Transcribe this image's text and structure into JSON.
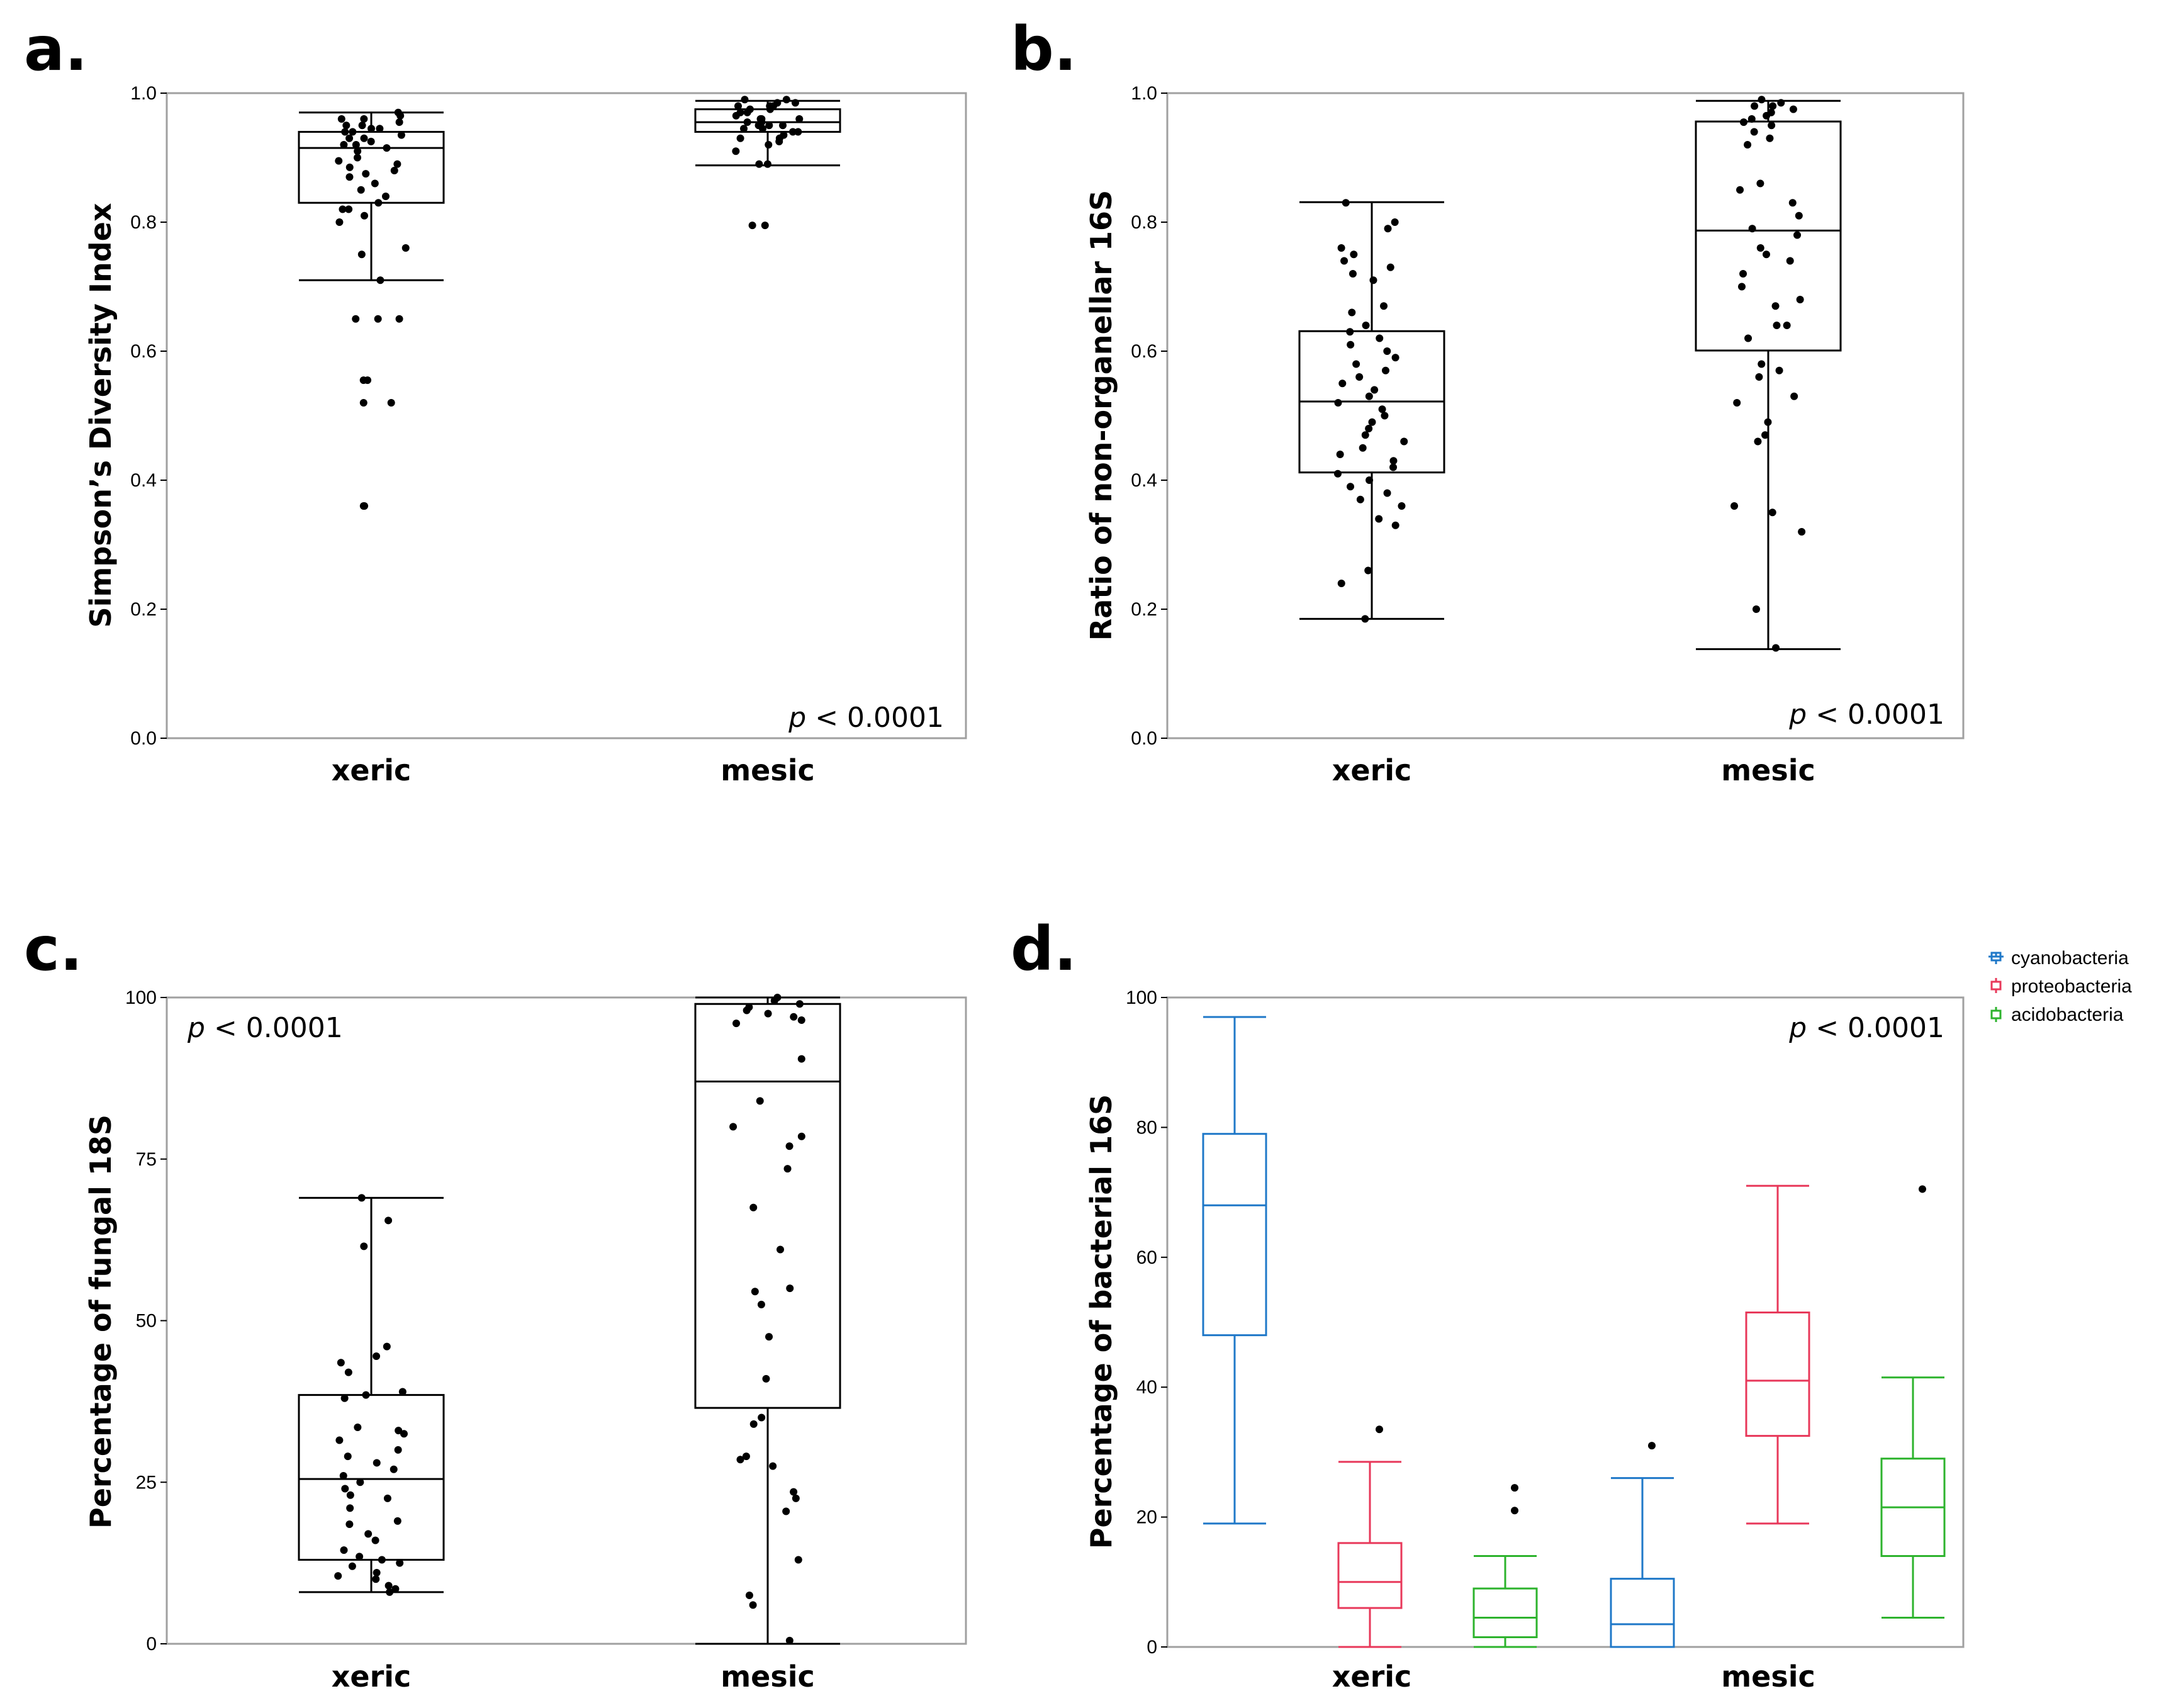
{
  "panels": {
    "a": {
      "letter": "a.",
      "pvalue_prefix": "p",
      "pvalue_rest": "< 0.0001"
    },
    "b": {
      "letter": "b.",
      "pvalue_prefix": "p",
      "pvalue_rest": "< 0.0001"
    },
    "c": {
      "letter": "c.",
      "pvalue_prefix": "p",
      "pvalue_rest": "< 0.0001"
    },
    "d": {
      "letter": "d.",
      "pvalue_prefix": "p",
      "pvalue_rest": "< 0.0001"
    }
  },
  "colors": {
    "cyanobacteria": "#1f78c8",
    "proteobacteria": "#e8385a",
    "acidobacteria": "#2db32d",
    "box": "#000000",
    "frame": "#a0a0a0"
  },
  "chart_data": [
    {
      "id": "a",
      "type": "box",
      "ylabel": "Simpson’s Diversity Index",
      "ylim": [
        0,
        1.0
      ],
      "yticks": [
        0.0,
        0.2,
        0.4,
        0.6,
        0.8,
        1.0
      ],
      "ytick_labels": [
        "0.0",
        "0.2",
        "0.4",
        "0.6",
        "0.8",
        "1.0"
      ],
      "categories": [
        "xeric",
        "mesic"
      ],
      "boxes": [
        {
          "category": "xeric",
          "whisker_low": 0.71,
          "q1": 0.83,
          "median": 0.915,
          "q3": 0.94,
          "whisker_high": 0.97,
          "points": [
            0.97,
            0.965,
            0.96,
            0.96,
            0.955,
            0.95,
            0.95,
            0.945,
            0.945,
            0.94,
            0.94,
            0.935,
            0.93,
            0.93,
            0.925,
            0.92,
            0.92,
            0.915,
            0.91,
            0.9,
            0.895,
            0.89,
            0.885,
            0.88,
            0.875,
            0.87,
            0.86,
            0.85,
            0.84,
            0.83,
            0.82,
            0.82,
            0.81,
            0.8,
            0.76,
            0.75,
            0.71,
            0.65,
            0.65,
            0.65,
            0.555,
            0.555,
            0.52,
            0.52,
            0.36,
            0.36
          ]
        },
        {
          "category": "mesic",
          "whisker_low": 0.888,
          "q1": 0.94,
          "median": 0.955,
          "q3": 0.975,
          "whisker_high": 0.988,
          "points": [
            0.99,
            0.99,
            0.985,
            0.985,
            0.98,
            0.98,
            0.98,
            0.975,
            0.975,
            0.97,
            0.97,
            0.965,
            0.96,
            0.96,
            0.96,
            0.955,
            0.955,
            0.95,
            0.95,
            0.95,
            0.945,
            0.945,
            0.94,
            0.94,
            0.935,
            0.93,
            0.93,
            0.925,
            0.92,
            0.91,
            0.89,
            0.89,
            0.795,
            0.795
          ]
        }
      ],
      "annotation": "p < 0.0001"
    },
    {
      "id": "b",
      "type": "box",
      "ylabel": "Ratio of non-organellar 16S",
      "ylim": [
        0,
        1.0
      ],
      "yticks": [
        0.0,
        0.2,
        0.4,
        0.6,
        0.8,
        1.0
      ],
      "ytick_labels": [
        "0.0",
        "0.2",
        "0.4",
        "0.6",
        "0.8",
        "1.0"
      ],
      "categories": [
        "xeric",
        "mesic"
      ],
      "boxes": [
        {
          "category": "xeric",
          "whisker_low": 0.185,
          "q1": 0.412,
          "median": 0.522,
          "q3": 0.631,
          "whisker_high": 0.831,
          "points": [
            0.83,
            0.8,
            0.79,
            0.76,
            0.75,
            0.74,
            0.73,
            0.72,
            0.71,
            0.67,
            0.66,
            0.64,
            0.63,
            0.62,
            0.61,
            0.6,
            0.59,
            0.58,
            0.57,
            0.56,
            0.55,
            0.54,
            0.53,
            0.52,
            0.51,
            0.5,
            0.49,
            0.48,
            0.47,
            0.46,
            0.45,
            0.44,
            0.43,
            0.42,
            0.41,
            0.4,
            0.39,
            0.38,
            0.37,
            0.36,
            0.34,
            0.33,
            0.26,
            0.24,
            0.185
          ]
        },
        {
          "category": "mesic",
          "whisker_low": 0.138,
          "q1": 0.601,
          "median": 0.787,
          "q3": 0.956,
          "whisker_high": 0.988,
          "points": [
            0.99,
            0.985,
            0.98,
            0.98,
            0.975,
            0.97,
            0.965,
            0.96,
            0.955,
            0.95,
            0.94,
            0.93,
            0.92,
            0.86,
            0.85,
            0.83,
            0.81,
            0.79,
            0.78,
            0.76,
            0.75,
            0.74,
            0.72,
            0.7,
            0.68,
            0.67,
            0.64,
            0.64,
            0.62,
            0.58,
            0.57,
            0.56,
            0.53,
            0.52,
            0.49,
            0.47,
            0.46,
            0.36,
            0.35,
            0.32,
            0.2,
            0.14
          ]
        }
      ],
      "annotation": "p < 0.0001"
    },
    {
      "id": "c",
      "type": "box",
      "ylabel": "Percentage of fungal 18S",
      "ylim": [
        0,
        100
      ],
      "yticks": [
        0,
        25,
        50,
        75,
        100
      ],
      "ytick_labels": [
        "0",
        "25",
        "50",
        "75",
        "100"
      ],
      "categories": [
        "xeric",
        "mesic"
      ],
      "boxes": [
        {
          "category": "xeric",
          "whisker_low": 8,
          "q1": 13,
          "median": 25.5,
          "q3": 38.5,
          "whisker_high": 69,
          "points": [
            69,
            65.5,
            61.5,
            46,
            44.5,
            43.5,
            42,
            39,
            38.5,
            38,
            33.5,
            33,
            32.5,
            31.5,
            30,
            29,
            28,
            27,
            26,
            25,
            24,
            23,
            22.5,
            21,
            19,
            18.5,
            17,
            16,
            14.5,
            13.5,
            13,
            12.5,
            12,
            11,
            10.5,
            10,
            9,
            8.5,
            8
          ]
        },
        {
          "category": "mesic",
          "whisker_low": 0,
          "q1": 36.5,
          "median": 87,
          "q3": 99,
          "whisker_high": 100,
          "points": [
            100,
            99.5,
            99,
            98.5,
            98,
            97.5,
            97,
            96.5,
            96,
            90.5,
            84,
            80,
            78.5,
            77,
            73.5,
            67.5,
            61,
            55,
            54.5,
            52.5,
            47.5,
            41,
            35,
            34,
            29,
            28.5,
            27.5,
            23.5,
            22.5,
            20.5,
            13,
            7.5,
            6,
            0.5
          ]
        }
      ],
      "annotation": "p < 0.0001"
    },
    {
      "id": "d",
      "type": "box",
      "ylabel": "Percentage of bacterial 16S",
      "ylim": [
        0,
        100
      ],
      "yticks": [
        0,
        20,
        40,
        60,
        80,
        100
      ],
      "ytick_labels": [
        "0",
        "20",
        "40",
        "60",
        "80",
        "100"
      ],
      "categories": [
        "xeric",
        "mesic"
      ],
      "legend": {
        "position": "top-right outside",
        "entries": [
          "cyanobacteria",
          "proteobacteria",
          "acidobacteria"
        ]
      },
      "series": [
        {
          "name": "cyanobacteria",
          "color_key": "cyanobacteria",
          "boxes": [
            {
              "category": "xeric",
              "whisker_low": 19,
              "q1": 48,
              "median": 68,
              "q3": 79,
              "whisker_high": 97,
              "outliers": []
            },
            {
              "category": "mesic",
              "whisker_low": 0,
              "q1": 0,
              "median": 3.5,
              "q3": 10.5,
              "whisker_high": 26,
              "outliers": [
                31
              ]
            }
          ]
        },
        {
          "name": "proteobacteria",
          "color_key": "proteobacteria",
          "boxes": [
            {
              "category": "xeric",
              "whisker_low": 0,
              "q1": 6,
              "median": 10,
              "q3": 16,
              "whisker_high": 28.5,
              "outliers": [
                33.5
              ]
            },
            {
              "category": "mesic",
              "whisker_low": 19,
              "q1": 32.5,
              "median": 41,
              "q3": 51.5,
              "whisker_high": 71,
              "outliers": []
            }
          ]
        },
        {
          "name": "acidobacteria",
          "color_key": "acidobacteria",
          "boxes": [
            {
              "category": "xeric",
              "whisker_low": 0,
              "q1": 1.5,
              "median": 4.5,
              "q3": 9,
              "whisker_high": 14,
              "outliers": [
                21,
                24.5
              ]
            },
            {
              "category": "mesic",
              "whisker_low": 4.5,
              "q1": 14,
              "median": 21.5,
              "q3": 29,
              "whisker_high": 41.5,
              "outliers": [
                70.5
              ]
            }
          ]
        }
      ],
      "annotation": "p < 0.0001"
    }
  ]
}
